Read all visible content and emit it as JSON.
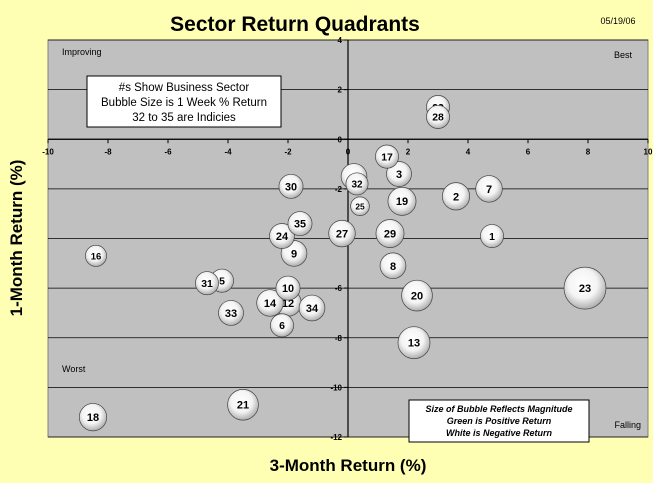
{
  "chart_data": {
    "type": "scatter",
    "bubble": true,
    "title": "Sector Return Quadrants",
    "date": "05/19/06",
    "xlabel": "3-Month Return (%)",
    "ylabel": "1-Month Return (%)",
    "xlim": [
      -10,
      10
    ],
    "ylim": [
      -12,
      4
    ],
    "xticks": [
      -10,
      -8,
      -6,
      -4,
      -2,
      0,
      2,
      4,
      6,
      8,
      10
    ],
    "yticks": [
      4,
      2,
      0,
      -2,
      -4,
      -6,
      -8,
      -10,
      -12
    ],
    "grid": true,
    "quadrant_labels": {
      "top_left": "Improving",
      "top_right": "Best",
      "bottom_left": "Worst",
      "bottom_right": "Falling"
    },
    "note_lines": [
      "#s Show Business Sector",
      "Bubble Size is 1 Week % Return",
      "32 to 35 are Indicies"
    ],
    "legend_lines": [
      "Size of Bubble Reflects Magnitude",
      "Green is Positive Return",
      "White is Negative Return"
    ],
    "colors": {
      "background": "#FFFFB3",
      "plot_area": "#C0C0C0",
      "bubble_fill": "#FFFFFF",
      "bubble_shade": "#AAAAAA"
    },
    "points": [
      {
        "label": "1",
        "x": 4.8,
        "y": -3.9,
        "size": 0.8
      },
      {
        "label": "2",
        "x": 3.6,
        "y": -2.3,
        "size": 1.3
      },
      {
        "label": "3",
        "x": 1.7,
        "y": -1.4,
        "size": 1.0
      },
      {
        "label": "4",
        "x": 0.2,
        "y": -1.5,
        "size": 1.1
      },
      {
        "label": "5",
        "x": -4.2,
        "y": -5.7,
        "size": 0.8
      },
      {
        "label": "6",
        "x": -2.2,
        "y": -7.5,
        "size": 0.8
      },
      {
        "label": "7",
        "x": 4.7,
        "y": -2.0,
        "size": 1.2
      },
      {
        "label": "8",
        "x": 1.5,
        "y": -5.1,
        "size": 1.1
      },
      {
        "label": "9",
        "x": -1.8,
        "y": -4.6,
        "size": 1.1
      },
      {
        "label": "10",
        "x": -2.0,
        "y": -6.0,
        "size": 0.9
      },
      {
        "label": "12",
        "x": -2.0,
        "y": -6.6,
        "size": 1.2
      },
      {
        "label": "13",
        "x": 2.2,
        "y": -8.2,
        "size": 2.0
      },
      {
        "label": "14",
        "x": -2.6,
        "y": -6.6,
        "size": 1.2
      },
      {
        "label": "16",
        "x": -8.4,
        "y": -4.7,
        "size": 0.6
      },
      {
        "label": "17",
        "x": 1.3,
        "y": -0.7,
        "size": 0.8
      },
      {
        "label": "18",
        "x": -8.5,
        "y": -11.2,
        "size": 1.3
      },
      {
        "label": "19",
        "x": 1.8,
        "y": -2.5,
        "size": 1.4
      },
      {
        "label": "20",
        "x": 2.3,
        "y": -6.3,
        "size": 1.8
      },
      {
        "label": "21",
        "x": -3.5,
        "y": -10.7,
        "size": 1.8
      },
      {
        "label": "22",
        "x": 3.0,
        "y": 1.3,
        "size": 0.8
      },
      {
        "label": "23",
        "x": 7.9,
        "y": -6.0,
        "size": 4.0
      },
      {
        "label": "24",
        "x": -2.2,
        "y": -3.9,
        "size": 1.0
      },
      {
        "label": "25",
        "x": 0.4,
        "y": -2.7,
        "size": 0.4
      },
      {
        "label": "27",
        "x": -0.2,
        "y": -3.8,
        "size": 1.2
      },
      {
        "label": "28",
        "x": 3.0,
        "y": 0.9,
        "size": 0.8
      },
      {
        "label": "29",
        "x": 1.4,
        "y": -3.8,
        "size": 1.4
      },
      {
        "label": "30",
        "x": -1.9,
        "y": -1.9,
        "size": 0.9
      },
      {
        "label": "31",
        "x": -4.7,
        "y": -5.8,
        "size": 0.8
      },
      {
        "label": "32",
        "x": 0.3,
        "y": -1.8,
        "size": 0.7
      },
      {
        "label": "33",
        "x": -3.9,
        "y": -7.0,
        "size": 1.0
      },
      {
        "label": "34",
        "x": -1.2,
        "y": -6.8,
        "size": 1.1
      },
      {
        "label": "35",
        "x": -1.6,
        "y": -3.4,
        "size": 0.9
      }
    ]
  }
}
